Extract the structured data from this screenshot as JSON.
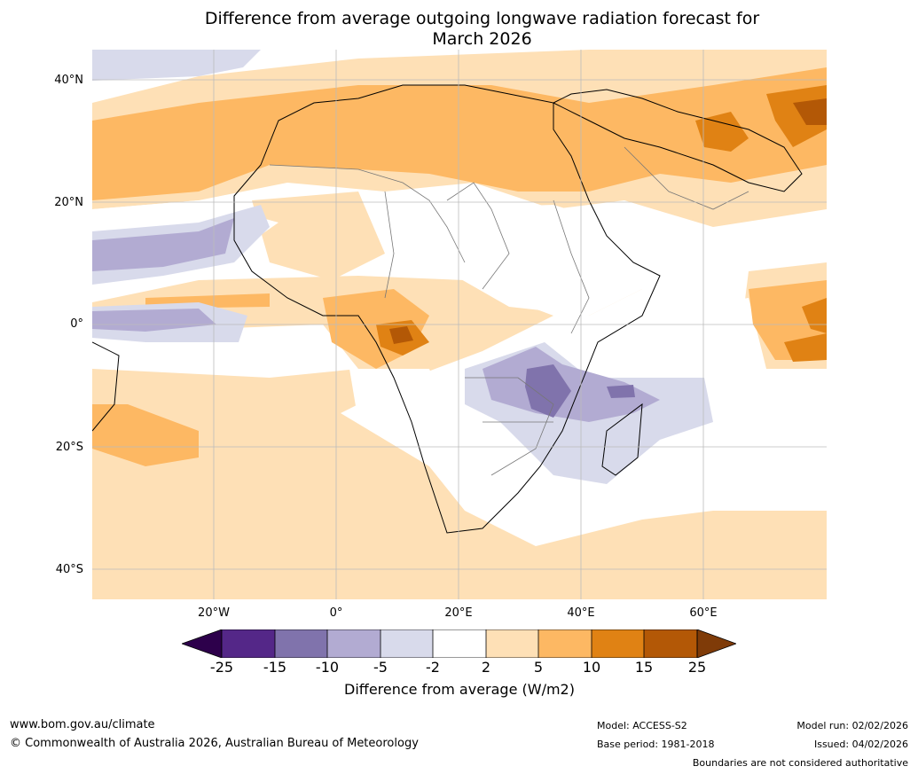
{
  "title": {
    "line1": "Difference from average outgoing longwave radiation forecast for",
    "line2": "March 2026"
  },
  "map": {
    "lat_labels": [
      "40°N",
      "20°N",
      "0°",
      "20°S",
      "40°S"
    ],
    "lon_labels": [
      "20°W",
      "0°",
      "20°E",
      "40°E",
      "60°E"
    ],
    "colors": {
      "neg_extreme": "#2d004b",
      "neg_25_15": "#542788",
      "neg_15_10": "#8073ac",
      "neg_10_5": "#b2abd2",
      "neg_5_2": "#d8daeb",
      "neutral": "#ffffff",
      "pos_2_5": "#fee0b6",
      "pos_5_10": "#fdb863",
      "pos_10_15": "#e08214",
      "pos_15_25": "#b35806",
      "pos_extreme": "#7f3b08",
      "coast": "#000000",
      "borders": "#777777",
      "grid": "#bbbbbb"
    }
  },
  "colorbar": {
    "ticks": [
      "-25",
      "-15",
      "-10",
      "-5",
      "-2",
      "2",
      "5",
      "10",
      "15",
      "25"
    ],
    "label": "Difference from average (W/m2)"
  },
  "footer": {
    "website": "www.bom.gov.au/climate",
    "copyright": "© Commonwealth of Australia 2026, Australian Bureau of Meteorology",
    "model": "Model: ACCESS-S2",
    "base_period": "Base period: 1981-2018",
    "model_run": "Model run: 02/02/2026",
    "issued": "Issued: 04/02/2026",
    "disclaimer": "Boundaries are not considered authoritative"
  }
}
